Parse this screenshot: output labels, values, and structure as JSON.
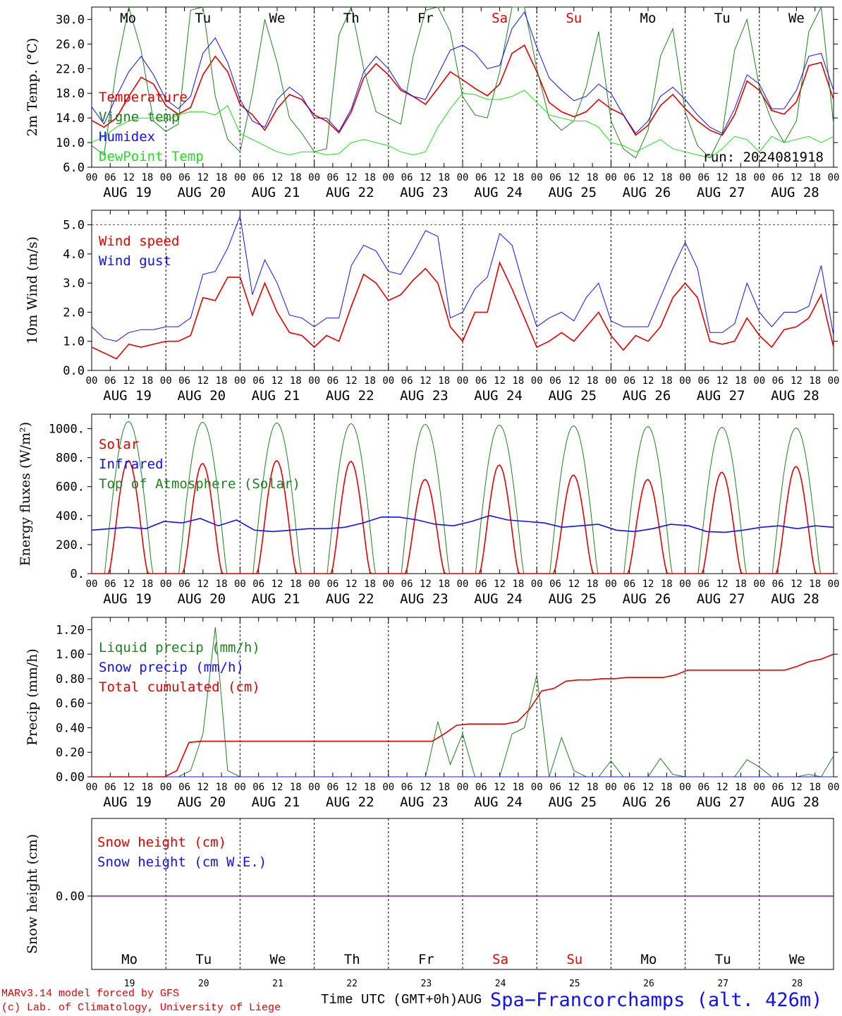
{
  "chart_data": [
    {
      "type": "line",
      "ylabel": "2m Temp. (°C)",
      "ylim": [
        6,
        32
      ],
      "yticks": [
        "6.0",
        "10.0",
        "14.0",
        "18.0",
        "22.0",
        "26.0",
        "30.0"
      ],
      "annotation": "run: 2024081918",
      "days": [
        "Mo",
        "Tu",
        "We",
        "Th",
        "Fr",
        "Sa",
        "Su",
        "Mo",
        "Tu",
        "We"
      ],
      "hour_labels": [
        "00",
        "06",
        "12",
        "18"
      ],
      "date_labels": [
        "AUG 19",
        "AUG 20",
        "AUG 21",
        "AUG 22",
        "AUG 23",
        "AUG 24",
        "AUG 25",
        "AUG 26",
        "AUG 27",
        "AUG 28"
      ],
      "series": [
        {
          "name": "Temperature",
          "color": "#e00000",
          "values": [
            13.6,
            12.5,
            14.0,
            17.5,
            20.6,
            19.5,
            16.0,
            14.6,
            15.7,
            21.0,
            24.0,
            21.5,
            16.2,
            14.5,
            12.0,
            15.5,
            17.8,
            17.0,
            14.5,
            13.5,
            11.6,
            15.0,
            20.5,
            22.8,
            21.0,
            18.5,
            17.5,
            16.2,
            18.8,
            21.5,
            20.2,
            18.8,
            17.6,
            19.5,
            24.5,
            25.8,
            21.5,
            16.5,
            15.0,
            14.2,
            15.0,
            17.0,
            15.5,
            14.5,
            11.2,
            12.8,
            16.0,
            17.8,
            15.5,
            13.5,
            12.0,
            11.2,
            14.5,
            20.0,
            18.5,
            15.2,
            14.6,
            16.6,
            22.5,
            23.0,
            17.0
          ]
        },
        {
          "name": "Vigne temp",
          "color": "#208020",
          "values": [
            9.5,
            8.0,
            22.0,
            32.5,
            25.0,
            13.5,
            11.8,
            13.0,
            31.5,
            32.5,
            17.5,
            10.5,
            8.5,
            18.0,
            30.0,
            23.0,
            14.0,
            11.5,
            8.5,
            9.0,
            27.5,
            32.5,
            22.0,
            15.0,
            14.0,
            13.0,
            24.0,
            31.5,
            32.5,
            28.0,
            17.5,
            14.5,
            14.0,
            21.5,
            32.5,
            32.5,
            22.0,
            14.0,
            12.0,
            13.5,
            19.0,
            28.0,
            13.5,
            9.0,
            7.5,
            12.0,
            24.0,
            28.5,
            15.0,
            9.5,
            7.5,
            11.5,
            25.0,
            30.0,
            19.0,
            13.5,
            10.0,
            13.5,
            28.0,
            32.0,
            13.0
          ]
        },
        {
          "name": "Humidex",
          "color": "#1010ff",
          "values": [
            15.8,
            13.0,
            17.5,
            21.5,
            24.0,
            21.0,
            17.0,
            15.5,
            17.5,
            24.5,
            27.0,
            23.0,
            17.0,
            13.5,
            12.5,
            17.0,
            19.0,
            17.5,
            14.0,
            14.0,
            11.8,
            15.5,
            21.5,
            24.0,
            22.0,
            18.8,
            17.5,
            17.0,
            21.0,
            25.0,
            25.8,
            24.5,
            22.0,
            22.5,
            28.5,
            31.2,
            25.5,
            20.5,
            18.5,
            16.8,
            17.5,
            19.5,
            18.0,
            14.5,
            11.5,
            13.5,
            17.5,
            19.0,
            17.0,
            14.5,
            12.5,
            11.5,
            15.5,
            21.0,
            19.5,
            15.5,
            15.5,
            18.5,
            24.0,
            24.5,
            18.5
          ]
        },
        {
          "name": "DewPoint Temp",
          "color": "#20e020",
          "values": [
            10.0,
            11.0,
            12.5,
            13.5,
            14.0,
            14.0,
            13.5,
            14.5,
            15.0,
            15.0,
            14.5,
            16.0,
            11.5,
            10.5,
            9.5,
            8.5,
            8.0,
            8.5,
            8.5,
            8.0,
            8.2,
            10.0,
            10.5,
            10.0,
            9.5,
            8.5,
            8.0,
            8.5,
            12.5,
            15.5,
            18.0,
            17.8,
            17.0,
            17.0,
            17.5,
            18.5,
            16.5,
            14.5,
            14.0,
            13.5,
            13.5,
            12.5,
            10.0,
            9.5,
            8.5,
            9.5,
            10.5,
            9.0,
            8.5,
            8.0,
            7.5,
            9.0,
            11.0,
            10.5,
            8.5,
            11.0,
            10.0,
            10.5,
            11.0,
            10.0,
            11.0
          ]
        }
      ]
    },
    {
      "type": "line",
      "ylabel": "10m Wind (m/s)",
      "ylim": [
        0,
        5.5
      ],
      "yticks": [
        "0.0",
        "1.0",
        "2.0",
        "3.0",
        "4.0",
        "5.0"
      ],
      "reference_line": 5.0,
      "date_labels": [
        "AUG 19",
        "AUG 20",
        "AUG 21",
        "AUG 22",
        "AUG 23",
        "AUG 24",
        "AUG 25",
        "AUG 26",
        "AUG 27",
        "AUG 28"
      ],
      "series": [
        {
          "name": "Wind speed",
          "color": "#e00000",
          "values": [
            0.8,
            0.6,
            0.4,
            0.9,
            0.8,
            0.9,
            1.0,
            1.0,
            1.2,
            2.5,
            2.4,
            3.2,
            3.2,
            1.9,
            3.0,
            2.0,
            1.3,
            1.2,
            0.8,
            1.2,
            1.0,
            2.2,
            3.3,
            3.0,
            2.4,
            2.6,
            3.1,
            3.5,
            3.0,
            1.5,
            1.0,
            2.0,
            2.0,
            3.7,
            2.8,
            1.8,
            0.8,
            1.0,
            1.3,
            1.0,
            1.5,
            2.0,
            1.2,
            0.7,
            1.2,
            1.0,
            1.5,
            2.5,
            3.0,
            2.5,
            1.0,
            0.9,
            1.0,
            1.8,
            1.2,
            0.8,
            1.4,
            1.5,
            1.8,
            2.6,
            0.8
          ]
        },
        {
          "name": "Wind gust",
          "color": "#1010ff",
          "values": [
            1.5,
            1.1,
            1.0,
            1.3,
            1.4,
            1.4,
            1.5,
            1.5,
            1.8,
            3.3,
            3.4,
            4.2,
            5.3,
            2.6,
            3.8,
            3.0,
            1.9,
            1.8,
            1.5,
            1.8,
            1.8,
            3.6,
            4.3,
            4.1,
            3.4,
            3.3,
            4.0,
            4.8,
            4.6,
            1.8,
            2.0,
            2.8,
            3.2,
            4.7,
            4.3,
            2.8,
            1.5,
            1.8,
            2.0,
            1.7,
            2.5,
            3.0,
            1.7,
            1.5,
            1.5,
            1.5,
            2.5,
            3.5,
            4.4,
            3.5,
            1.3,
            1.3,
            1.6,
            3.0,
            2.0,
            1.5,
            2.0,
            2.0,
            2.2,
            3.6,
            1.2
          ]
        }
      ]
    },
    {
      "type": "line",
      "ylabel": "Energy fluxes (W/m²)",
      "ylim": [
        0,
        1100
      ],
      "yticks": [
        "0.",
        "200.",
        "400.",
        "600.",
        "800.",
        "1000."
      ],
      "date_labels": [
        "AUG 19",
        "AUG 20",
        "AUG 21",
        "AUG 22",
        "AUG 23",
        "AUG 24",
        "AUG 25",
        "AUG 26",
        "AUG 27",
        "AUG 28"
      ],
      "series": [
        {
          "name": "Solar",
          "color": "#e00000",
          "values": [
            780,
            760,
            780,
            775,
            650,
            750,
            680,
            650,
            700,
            740
          ]
        },
        {
          "name": "Infrared",
          "color": "#1010ff",
          "values": [
            300,
            310,
            320,
            310,
            360,
            350,
            380,
            330,
            370,
            300,
            290,
            300,
            310,
            310,
            320,
            350,
            390,
            390,
            370,
            340,
            330,
            360,
            400,
            370,
            360,
            350,
            320,
            330,
            340,
            300,
            290,
            310,
            340,
            330,
            290,
            285,
            300,
            320,
            330,
            310,
            330,
            320
          ]
        },
        {
          "name": "Top of Atmosphere (Solar)",
          "color": "#208020",
          "values": [
            1050,
            1045,
            1040,
            1035,
            1030,
            1025,
            1020,
            1015,
            1010,
            1005
          ]
        }
      ]
    },
    {
      "type": "line",
      "ylabel": "Precip (mm/h)",
      "ylim": [
        0,
        1.3
      ],
      "yticks": [
        "0.00",
        "0.20",
        "0.40",
        "0.60",
        "0.80",
        "1.00",
        "1.20"
      ],
      "date_labels": [
        "AUG 19",
        "AUG 20",
        "AUG 21",
        "AUG 22",
        "AUG 23",
        "AUG 24",
        "AUG 25",
        "AUG 26",
        "AUG 27",
        "AUG 28"
      ],
      "series": [
        {
          "name": "Liquid precip (mm/h)",
          "color": "#208020",
          "values": [
            0,
            0,
            0,
            0,
            0,
            0,
            0,
            0,
            0.05,
            0.35,
            1.22,
            0.05,
            0,
            0,
            0,
            0,
            0,
            0,
            0,
            0,
            0,
            0,
            0,
            0,
            0,
            0,
            0,
            0,
            0.45,
            0.1,
            0.35,
            0,
            0,
            0,
            0.35,
            0.4,
            0.83,
            0,
            0.32,
            0.05,
            0,
            0,
            0.13,
            0,
            0,
            0,
            0.15,
            0.02,
            0,
            0,
            0,
            0,
            0,
            0.14,
            0.08,
            0,
            0,
            0,
            0.02,
            0,
            0.17
          ]
        },
        {
          "name": "Snow precip (mm/h)",
          "color": "#1010ff",
          "values": [
            0,
            0,
            0,
            0,
            0,
            0,
            0,
            0,
            0,
            0
          ]
        },
        {
          "name": "Total cumulated (cm)",
          "color": "#e00000",
          "values": [
            0,
            0,
            0,
            0,
            0,
            0,
            0,
            0.05,
            0.28,
            0.29,
            0.29,
            0.29,
            0.29,
            0.29,
            0.29,
            0.29,
            0.29,
            0.29,
            0.29,
            0.29,
            0.29,
            0.29,
            0.29,
            0.29,
            0.29,
            0.29,
            0.29,
            0.29,
            0.29,
            0.35,
            0.42,
            0.43,
            0.43,
            0.43,
            0.43,
            0.45,
            0.55,
            0.7,
            0.72,
            0.78,
            0.79,
            0.79,
            0.8,
            0.8,
            0.81,
            0.81,
            0.81,
            0.81,
            0.83,
            0.87,
            0.87,
            0.87,
            0.87,
            0.87,
            0.87,
            0.87,
            0.87,
            0.87,
            0.9,
            0.94,
            0.96,
            1.0
          ]
        }
      ]
    },
    {
      "type": "line",
      "ylabel": "Snow height (cm)",
      "yticks": [
        "0.00"
      ],
      "series": [
        {
          "name": "Snow height (cm)",
          "color": "#e00000",
          "values": [
            0,
            0
          ]
        },
        {
          "name": "Snow height (cm W.E.)",
          "color": "#1010ff",
          "values": [
            0,
            0
          ]
        }
      ],
      "day_names": [
        "Mo",
        "Tu",
        "We",
        "Th",
        "Fr",
        "Sa",
        "Su",
        "Mo",
        "Tu",
        "We"
      ],
      "day_numbers": [
        "19",
        "20",
        "21",
        "22",
        "23",
        "24",
        "25",
        "26",
        "27",
        "28"
      ]
    }
  ],
  "footer": {
    "credit_line1": "MARv3.14 model forced by GFS",
    "credit_line2": "(c) Lab. of Climatology, University of Liege",
    "xlabel": "Time UTC (GMT+0h)AUG",
    "station": "Spa−Francorchamps (alt. 426m)"
  },
  "colors": {
    "weekend": "#e00000",
    "weekday": "#000000"
  }
}
